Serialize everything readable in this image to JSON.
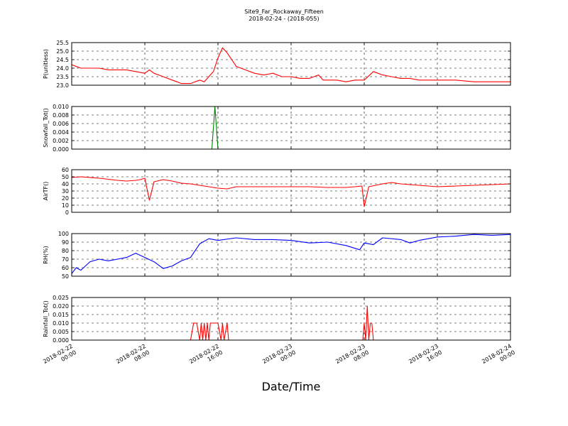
{
  "figure": {
    "title_line1": "Site9_Far_Rockaway_Fifteen",
    "title_line2": "2018-02-24 - (2018-055)",
    "xlabel": "Date/Time"
  },
  "x_axis": {
    "range": [
      "2018-02-22 00:00",
      "2018-02-24 00:00"
    ],
    "ticks": [
      {
        "value": "2018-02-22 00:00",
        "line1": "2018-02-22",
        "line2": "00:00"
      },
      {
        "value": "2018-02-22 08:00",
        "line1": "2018-02-22",
        "line2": "08:00"
      },
      {
        "value": "2018-02-22 16:00",
        "line1": "2018-02-22",
        "line2": "16:00"
      },
      {
        "value": "2018-02-23 00:00",
        "line1": "2018-02-23",
        "line2": "00:00"
      },
      {
        "value": "2018-02-23 08:00",
        "line1": "2018-02-23",
        "line2": "08:00"
      },
      {
        "value": "2018-02-23 16:00",
        "line1": "2018-02-23",
        "line2": "16:00"
      },
      {
        "value": "2018-02-24 00:00",
        "line1": "2018-02-24",
        "line2": "00:00"
      }
    ]
  },
  "chart_data": [
    {
      "type": "line",
      "ylabel": "P(unitless)",
      "ylim": [
        23.0,
        25.5
      ],
      "yticks": [
        "23.0",
        "23.5",
        "24.0",
        "24.5",
        "25.0",
        "25.5"
      ],
      "grid": true,
      "color": "#ff0000",
      "series": [
        {
          "x": [
            "2018-02-22 00:00",
            "2018-02-22 01:00",
            "2018-02-22 02:00",
            "2018-02-22 03:00",
            "2018-02-22 04:00",
            "2018-02-22 05:00",
            "2018-02-22 06:00",
            "2018-02-22 07:00",
            "2018-02-22 08:00",
            "2018-02-22 08:30",
            "2018-02-22 09:00",
            "2018-02-22 10:00",
            "2018-02-22 11:00",
            "2018-02-22 11:30",
            "2018-02-22 12:00",
            "2018-02-22 13:00",
            "2018-02-22 14:00",
            "2018-02-22 14:30",
            "2018-02-22 15:00",
            "2018-02-22 15:30",
            "2018-02-22 16:00",
            "2018-02-22 16:30",
            "2018-02-22 17:00",
            "2018-02-22 18:00",
            "2018-02-22 18:30",
            "2018-02-22 19:00",
            "2018-02-22 20:00",
            "2018-02-22 21:00",
            "2018-02-22 22:00",
            "2018-02-22 23:00",
            "2018-02-23 00:00",
            "2018-02-23 01:00",
            "2018-02-23 02:00",
            "2018-02-23 03:00",
            "2018-02-23 03:30",
            "2018-02-23 04:00",
            "2018-02-23 05:00",
            "2018-02-23 06:00",
            "2018-02-23 07:00",
            "2018-02-23 08:00",
            "2018-02-23 09:00",
            "2018-02-23 10:00",
            "2018-02-23 11:00",
            "2018-02-23 12:00",
            "2018-02-23 13:00",
            "2018-02-23 14:00",
            "2018-02-23 15:00",
            "2018-02-23 16:00",
            "2018-02-23 18:00",
            "2018-02-23 20:00",
            "2018-02-23 22:00",
            "2018-02-24 00:00"
          ],
          "y": [
            24.2,
            24.0,
            24.0,
            24.0,
            23.9,
            23.9,
            23.9,
            23.8,
            23.7,
            23.9,
            23.7,
            23.5,
            23.3,
            23.2,
            23.1,
            23.1,
            23.3,
            23.2,
            23.5,
            23.8,
            24.6,
            25.2,
            24.9,
            24.1,
            24.0,
            23.9,
            23.7,
            23.6,
            23.7,
            23.5,
            23.5,
            23.4,
            23.4,
            23.6,
            23.3,
            23.3,
            23.3,
            23.2,
            23.3,
            23.3,
            23.8,
            23.6,
            23.5,
            23.4,
            23.4,
            23.3,
            23.3,
            23.3,
            23.3,
            23.2,
            23.2,
            23.2
          ]
        }
      ]
    },
    {
      "type": "line",
      "ylabel": "Snowfall_Tot()",
      "ylim": [
        0.0,
        0.01
      ],
      "yticks": [
        "0.000",
        "0.002",
        "0.004",
        "0.006",
        "0.008",
        "0.010"
      ],
      "grid": true,
      "color": "#008000",
      "series": [
        {
          "x": [
            "2018-02-22 00:00",
            "2018-02-22 15:00",
            "2018-02-22 15:20",
            "2018-02-22 15:40",
            "2018-02-22 16:00",
            "2018-02-24 00:00"
          ],
          "y": [
            0.0,
            0.0,
            0.0,
            0.01,
            0.0,
            0.0
          ]
        }
      ]
    },
    {
      "type": "line",
      "ylabel": "AirTF()",
      "ylim": [
        0,
        60
      ],
      "yticks": [
        "0",
        "10",
        "20",
        "30",
        "40",
        "50",
        "60"
      ],
      "grid": true,
      "color": "#ff0000",
      "series": [
        {
          "x": [
            "2018-02-22 00:00",
            "2018-02-22 01:00",
            "2018-02-22 03:00",
            "2018-02-22 05:00",
            "2018-02-22 06:00",
            "2018-02-22 07:00",
            "2018-02-22 07:30",
            "2018-02-22 08:00",
            "2018-02-22 08:30",
            "2018-02-22 09:00",
            "2018-02-22 10:00",
            "2018-02-22 11:00",
            "2018-02-22 12:00",
            "2018-02-22 13:00",
            "2018-02-22 14:00",
            "2018-02-22 15:00",
            "2018-02-22 16:00",
            "2018-02-22 17:00",
            "2018-02-22 18:00",
            "2018-02-22 20:00",
            "2018-02-22 22:00",
            "2018-02-23 00:00",
            "2018-02-23 02:00",
            "2018-02-23 04:00",
            "2018-02-23 06:00",
            "2018-02-23 07:00",
            "2018-02-23 07:45",
            "2018-02-23 08:00",
            "2018-02-23 08:30",
            "2018-02-23 10:00",
            "2018-02-23 11:00",
            "2018-02-23 12:00",
            "2018-02-23 14:00",
            "2018-02-23 16:00",
            "2018-02-23 18:00",
            "2018-02-23 20:00",
            "2018-02-23 22:00",
            "2018-02-24 00:00"
          ],
          "y": [
            49,
            50,
            48,
            45,
            44,
            45,
            46,
            48,
            17,
            43,
            46,
            44,
            41,
            40,
            38,
            36,
            34,
            33,
            36,
            36,
            36,
            36,
            36,
            35,
            35,
            36,
            37,
            8,
            36,
            40,
            42,
            40,
            38,
            36,
            37,
            38,
            39,
            40
          ]
        }
      ]
    },
    {
      "type": "line",
      "ylabel": "RH(%)",
      "ylim": [
        50,
        100
      ],
      "yticks": [
        "50",
        "60",
        "70",
        "80",
        "90",
        "100"
      ],
      "grid": true,
      "color": "#0000ff",
      "series": [
        {
          "x": [
            "2018-02-22 00:00",
            "2018-02-22 00:30",
            "2018-02-22 01:00",
            "2018-02-22 02:00",
            "2018-02-22 03:00",
            "2018-02-22 04:00",
            "2018-02-22 05:00",
            "2018-02-22 06:00",
            "2018-02-22 07:00",
            "2018-02-22 08:00",
            "2018-02-22 09:00",
            "2018-02-22 10:00",
            "2018-02-22 11:00",
            "2018-02-22 12:00",
            "2018-02-22 13:00",
            "2018-02-22 14:00",
            "2018-02-22 15:00",
            "2018-02-22 16:00",
            "2018-02-22 18:00",
            "2018-02-22 20:00",
            "2018-02-22 22:00",
            "2018-02-23 00:00",
            "2018-02-23 02:00",
            "2018-02-23 04:00",
            "2018-02-23 06:00",
            "2018-02-23 07:30",
            "2018-02-23 08:00",
            "2018-02-23 09:00",
            "2018-02-23 10:00",
            "2018-02-23 12:00",
            "2018-02-23 13:00",
            "2018-02-23 14:00",
            "2018-02-23 16:00",
            "2018-02-23 18:00",
            "2018-02-23 20:00",
            "2018-02-23 22:00",
            "2018-02-24 00:00"
          ],
          "y": [
            53,
            60,
            57,
            67,
            70,
            68,
            70,
            72,
            77,
            72,
            67,
            59,
            62,
            68,
            72,
            88,
            94,
            92,
            95,
            93,
            93,
            92,
            89,
            90,
            86,
            81,
            89,
            87,
            95,
            93,
            89,
            92,
            96,
            97,
            99,
            98,
            99
          ]
        }
      ]
    },
    {
      "type": "line",
      "ylabel": "Rainfall_Tot()",
      "ylim": [
        0.0,
        0.025
      ],
      "yticks": [
        "0.000",
        "0.005",
        "0.010",
        "0.015",
        "0.020",
        "0.025"
      ],
      "grid": true,
      "color": "#ff0000",
      "series": [
        {
          "x": [
            "2018-02-22 00:00",
            "2018-02-22 13:00",
            "2018-02-22 13:20",
            "2018-02-22 13:40",
            "2018-02-22 14:00",
            "2018-02-22 14:10",
            "2018-02-22 14:20",
            "2018-02-22 14:30",
            "2018-02-22 14:40",
            "2018-02-22 14:50",
            "2018-02-22 15:00",
            "2018-02-22 15:10",
            "2018-02-22 15:30",
            "2018-02-22 16:00",
            "2018-02-22 16:20",
            "2018-02-22 16:30",
            "2018-02-22 16:40",
            "2018-02-22 17:00",
            "2018-02-22 17:10",
            "2018-02-22 17:20",
            "2018-02-23 07:50",
            "2018-02-23 08:00",
            "2018-02-23 08:10",
            "2018-02-23 08:20",
            "2018-02-23 08:30",
            "2018-02-23 08:40",
            "2018-02-23 08:50",
            "2018-02-23 09:00",
            "2018-02-23 09:10",
            "2018-02-23 09:20",
            "2018-02-24 00:00"
          ],
          "y": [
            0,
            0,
            0.01,
            0.01,
            0,
            0.01,
            0,
            0.01,
            0,
            0.01,
            0,
            0.01,
            0.01,
            0.01,
            0,
            0.01,
            0,
            0.01,
            0,
            0,
            0,
            0.01,
            0,
            0.02,
            0,
            0.01,
            0.01,
            0,
            0,
            0,
            0
          ]
        }
      ]
    }
  ]
}
